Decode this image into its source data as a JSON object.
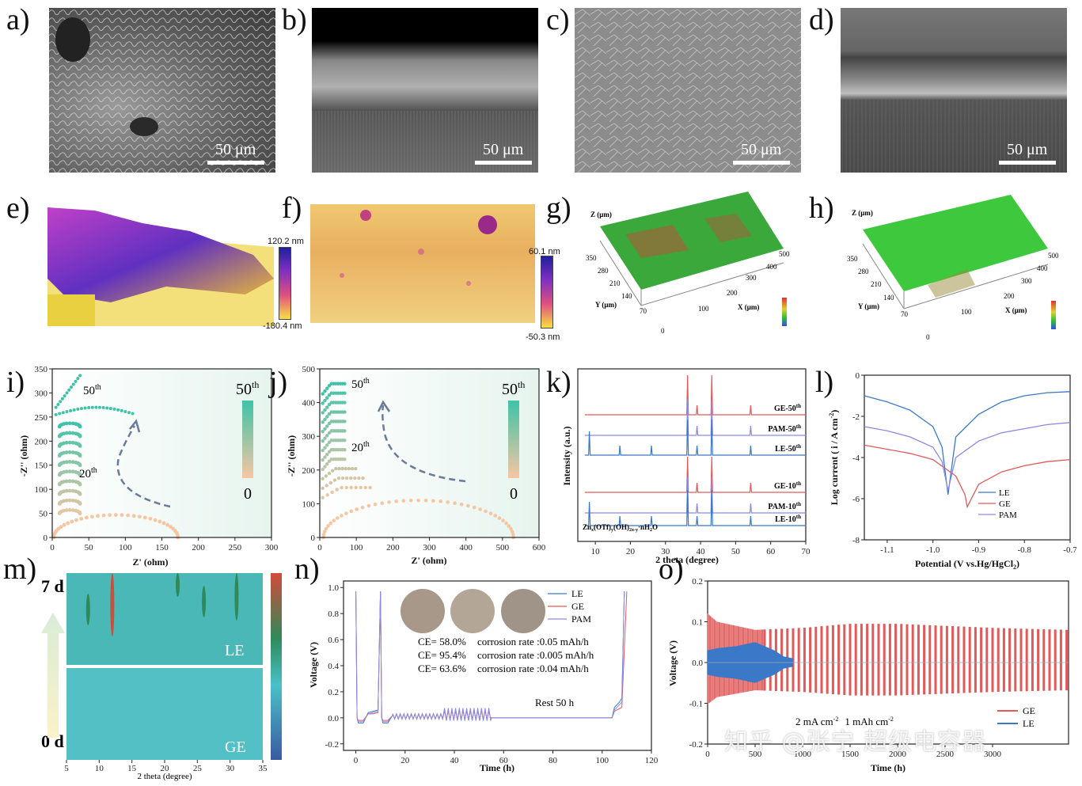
{
  "labels": {
    "a": "a)",
    "b": "b)",
    "c": "c)",
    "d": "d)",
    "e": "e)",
    "f": "f)",
    "g": "g)",
    "h": "h)",
    "i": "i)",
    "j": "j)",
    "k": "k)",
    "l": "l)",
    "m": "m)",
    "n": "n)",
    "o": "o)"
  },
  "sem": {
    "scale": "50 μm"
  },
  "afm": {
    "e_max": "120.2 nm",
    "e_min": "-180.4 nm",
    "f_max": "60.1 nm",
    "f_min": "-50.3 nm"
  },
  "profilometry": {
    "z_label": "Z (μm)",
    "y_label": "Y (μm)",
    "x_label": "X (μm)",
    "y_ticks": [
      "350",
      "280",
      "210",
      "140",
      "70"
    ],
    "x_ticks": [
      "100",
      "200",
      "300",
      "400",
      "500"
    ],
    "zero": "0"
  },
  "panel_i": {
    "xlabel": "Z' (ohm)",
    "ylabel": "-Z'' (ohm)",
    "x_ticks": [
      "0",
      "50",
      "100",
      "150",
      "200",
      "250",
      "300"
    ],
    "y_ticks": [
      "0",
      "50",
      "100",
      "150",
      "200",
      "250",
      "300",
      "350"
    ],
    "ann_50": "50",
    "ann_20": "20",
    "sup": "th",
    "cbar_top": "50",
    "cbar_bottom": "0"
  },
  "panel_j": {
    "xlabel": "Z' (ohm)",
    "ylabel": "-Z'' (ohm)",
    "x_ticks": [
      "0",
      "100",
      "200",
      "300",
      "400",
      "500",
      "600"
    ],
    "y_ticks": [
      "0",
      "100",
      "200",
      "300",
      "400",
      "500"
    ],
    "ann_50": "50",
    "ann_20": "20",
    "sup": "th",
    "cbar_top": "50",
    "cbar_bottom": "0"
  },
  "panel_k": {
    "xlabel": "2 theta (degree)",
    "ylabel": "Intensity (a.u.)",
    "x_ticks": [
      "10",
      "20",
      "30",
      "40",
      "50",
      "60",
      "70"
    ],
    "traces": [
      {
        "name": "GE-50",
        "sup": "th"
      },
      {
        "name": "PAM-50",
        "sup": "th"
      },
      {
        "name": "LE-50",
        "sup": "th"
      },
      {
        "name": "GE-10",
        "sup": "th"
      },
      {
        "name": "PAM-10",
        "sup": "th"
      },
      {
        "name": "LE-10",
        "sup": "th"
      }
    ],
    "phase": "Zn",
    "phase_sub1": "x",
    "phase_mid": "(OTf)",
    "phase_sub2": "y",
    "phase_mid2": "(OH)",
    "phase_sub3": "2x-y",
    "phase_end": "·nH",
    "phase_sub4": "2",
    "phase_tail": "O"
  },
  "panel_l": {
    "xlabel": "Potential (V vs.Hg/HgCl",
    "xlabel_sub": "2",
    "xlabel_end": ")",
    "ylabel": "Log current ( i / A cm",
    "ylabel_sup": "-2",
    "ylabel_end": ")",
    "x_ticks": [
      "-1.1",
      "-1.0",
      "-0.9",
      "-0.8",
      "-0.7"
    ],
    "y_ticks": [
      "0",
      "-2",
      "-4",
      "-6",
      "-8"
    ],
    "legend": [
      "LE",
      "GE",
      "PAM"
    ]
  },
  "panel_m": {
    "top": "7 d",
    "bottom": "0 d",
    "le": "LE",
    "ge": "GE",
    "xlabel": "2 theta (degree)",
    "x_ticks": [
      "5",
      "10",
      "15",
      "20",
      "25",
      "30",
      "35"
    ]
  },
  "panel_n": {
    "xlabel": "Time (h)",
    "ylabel": "Voltage (V)",
    "x_ticks": [
      "0",
      "20",
      "40",
      "60",
      "80",
      "100",
      "120"
    ],
    "y_ticks": [
      "1.0",
      "0.8",
      "0.6",
      "0.4",
      "0.2",
      "0.0",
      "-0.2"
    ],
    "legend": [
      "LE",
      "GE",
      "PAM"
    ],
    "ce_lines": [
      {
        "ce": "CE= 58.0%",
        "rate": "corrosion rate :0.05 mAh/h"
      },
      {
        "ce": "CE= 95.4%",
        "rate": "corrosion rate :0.005 mAh/h"
      },
      {
        "ce": "CE= 63.6%",
        "rate": "corrosion rate :0.04 mAh/h"
      }
    ],
    "rest": "Rest 50 h"
  },
  "panel_o": {
    "xlabel": "Time (h)",
    "ylabel": "Voltage (V)",
    "x_ticks": [
      "0",
      "500",
      "1000",
      "1500",
      "2000",
      "2500",
      "3000"
    ],
    "y_ticks": [
      "0.2",
      "0.1",
      "0.0",
      "-0.1",
      "-0.2"
    ],
    "legend": [
      "GE",
      "LE"
    ],
    "cond1": "2 mA cm",
    "cond1_sup": "-2",
    "cond2": "1 mAh cm",
    "cond2_sup": "-2"
  },
  "watermark": "知乎 @张宁 超级电容器",
  "colors": {
    "le": "#3a78c8",
    "ge": "#e05a5a",
    "pam": "#8a8ae6",
    "teal": "#3ec3a8",
    "peach": "#f6c6a3"
  },
  "chart_data": [
    {
      "type": "line",
      "id": "l",
      "title": "",
      "xlabel": "Potential (V vs.Hg/HgCl2)",
      "ylabel": "Log current ( i / A cm-2)",
      "xlim": [
        -1.15,
        -0.7
      ],
      "ylim": [
        -8,
        0
      ],
      "series": [
        {
          "name": "LE",
          "x": [
            -1.15,
            -1.1,
            -1.05,
            -1.0,
            -0.98,
            -0.967,
            -0.95,
            -0.9,
            -0.85,
            -0.8,
            -0.75,
            -0.7
          ],
          "values": [
            -1.0,
            -1.3,
            -1.7,
            -2.5,
            -3.5,
            -5.8,
            -3.0,
            -1.9,
            -1.3,
            -1.0,
            -0.85,
            -0.8
          ]
        },
        {
          "name": "GE",
          "x": [
            -1.15,
            -1.1,
            -1.05,
            -1.0,
            -0.95,
            -0.93,
            -0.925,
            -0.9,
            -0.85,
            -0.8,
            -0.75,
            -0.7
          ],
          "values": [
            -3.4,
            -3.6,
            -3.8,
            -4.1,
            -4.9,
            -5.8,
            -6.4,
            -5.3,
            -4.7,
            -4.4,
            -4.2,
            -4.1
          ]
        },
        {
          "name": "PAM",
          "x": [
            -1.15,
            -1.1,
            -1.05,
            -1.0,
            -0.98,
            -0.967,
            -0.95,
            -0.9,
            -0.85,
            -0.8,
            -0.75,
            -0.7
          ],
          "values": [
            -2.5,
            -2.7,
            -3.0,
            -3.5,
            -4.2,
            -5.6,
            -4.0,
            -3.2,
            -2.8,
            -2.6,
            -2.4,
            -2.3
          ]
        }
      ]
    },
    {
      "type": "line",
      "id": "n",
      "title": "",
      "xlabel": "Time (h)",
      "ylabel": "Voltage (V)",
      "xlim": [
        -5,
        120
      ],
      "ylim": [
        -0.25,
        1.05
      ],
      "series": [
        {
          "name": "LE",
          "x": [
            0,
            0.5,
            1,
            3,
            5,
            7,
            9,
            10,
            10.5,
            11,
            13,
            15,
            55,
            60,
            70,
            80,
            90,
            100,
            104,
            105,
            106,
            107,
            108,
            109
          ],
          "values": [
            0.97,
            0.0,
            -0.04,
            -0.04,
            0.04,
            0.05,
            0.06,
            0.97,
            0.0,
            -0.04,
            -0.04,
            0.02,
            0.0,
            0.0,
            0.0,
            0.0,
            0.0,
            0.0,
            0.0,
            0.08,
            0.1,
            0.12,
            0.15,
            0.97
          ]
        },
        {
          "name": "GE",
          "x": [
            0,
            0.5,
            1,
            3,
            5,
            7,
            9,
            10,
            10.5,
            11,
            13,
            15,
            55,
            60,
            70,
            80,
            90,
            100,
            104,
            105,
            106,
            107,
            108,
            110
          ],
          "values": [
            0.97,
            0.0,
            -0.02,
            -0.02,
            0.03,
            0.03,
            0.04,
            0.97,
            0.0,
            -0.02,
            -0.02,
            0.02,
            0.0,
            0.0,
            0.0,
            0.0,
            0.0,
            0.0,
            0.0,
            0.05,
            0.06,
            0.07,
            0.08,
            0.97
          ]
        },
        {
          "name": "PAM",
          "x": [
            0,
            0.5,
            1,
            3,
            5,
            7,
            9,
            10,
            10.5,
            11,
            13,
            15,
            55,
            60,
            70,
            80,
            90,
            100,
            104,
            105,
            106,
            107,
            108,
            109
          ],
          "values": [
            0.97,
            0.0,
            -0.03,
            -0.03,
            0.03,
            0.04,
            0.05,
            0.97,
            0.0,
            -0.03,
            -0.03,
            0.02,
            0.0,
            0.0,
            0.0,
            0.0,
            0.0,
            0.0,
            0.0,
            0.06,
            0.08,
            0.1,
            0.12,
            0.97
          ]
        }
      ]
    },
    {
      "type": "line",
      "id": "o",
      "title": "",
      "xlabel": "Time (h)",
      "ylabel": "Voltage (V)",
      "xlim": [
        0,
        3800
      ],
      "ylim": [
        -0.2,
        0.2
      ],
      "series": [
        {
          "name": "GE",
          "envelope_time": [
            0,
            100,
            500,
            1000,
            1500,
            2000,
            2500,
            3000,
            3800
          ],
          "envelope_amp": [
            0.12,
            0.1,
            0.08,
            0.085,
            0.095,
            0.095,
            0.09,
            0.085,
            0.08
          ]
        },
        {
          "name": "LE",
          "envelope_time": [
            0,
            100,
            300,
            500,
            700,
            800,
            900
          ],
          "envelope_amp": [
            0.03,
            0.035,
            0.04,
            0.05,
            0.03,
            0.015,
            0.01
          ]
        }
      ]
    }
  ]
}
